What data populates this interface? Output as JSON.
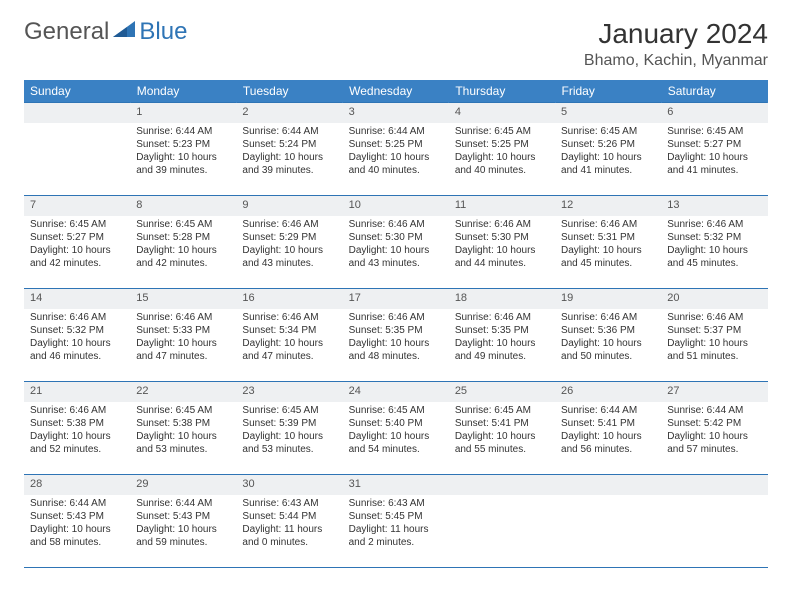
{
  "brand": {
    "word1": "General",
    "word2": "Blue",
    "tri_color": "#2e74b5",
    "text1_color": "#555555",
    "text2_color": "#2e74b5"
  },
  "title": "January 2024",
  "location": "Bhamo, Kachin, Myanmar",
  "colors": {
    "header_bg": "#3a81c4",
    "header_text": "#ffffff",
    "rule": "#2e74b5",
    "daynum_bg": "#eef0f2",
    "body_text": "#333333",
    "page_bg": "#ffffff"
  },
  "day_headers": [
    "Sunday",
    "Monday",
    "Tuesday",
    "Wednesday",
    "Thursday",
    "Friday",
    "Saturday"
  ],
  "weeks": [
    {
      "nums": [
        "",
        "1",
        "2",
        "3",
        "4",
        "5",
        "6"
      ],
      "cells": [
        [],
        [
          "Sunrise: 6:44 AM",
          "Sunset: 5:23 PM",
          "Daylight: 10 hours",
          "and 39 minutes."
        ],
        [
          "Sunrise: 6:44 AM",
          "Sunset: 5:24 PM",
          "Daylight: 10 hours",
          "and 39 minutes."
        ],
        [
          "Sunrise: 6:44 AM",
          "Sunset: 5:25 PM",
          "Daylight: 10 hours",
          "and 40 minutes."
        ],
        [
          "Sunrise: 6:45 AM",
          "Sunset: 5:25 PM",
          "Daylight: 10 hours",
          "and 40 minutes."
        ],
        [
          "Sunrise: 6:45 AM",
          "Sunset: 5:26 PM",
          "Daylight: 10 hours",
          "and 41 minutes."
        ],
        [
          "Sunrise: 6:45 AM",
          "Sunset: 5:27 PM",
          "Daylight: 10 hours",
          "and 41 minutes."
        ]
      ]
    },
    {
      "nums": [
        "7",
        "8",
        "9",
        "10",
        "11",
        "12",
        "13"
      ],
      "cells": [
        [
          "Sunrise: 6:45 AM",
          "Sunset: 5:27 PM",
          "Daylight: 10 hours",
          "and 42 minutes."
        ],
        [
          "Sunrise: 6:45 AM",
          "Sunset: 5:28 PM",
          "Daylight: 10 hours",
          "and 42 minutes."
        ],
        [
          "Sunrise: 6:46 AM",
          "Sunset: 5:29 PM",
          "Daylight: 10 hours",
          "and 43 minutes."
        ],
        [
          "Sunrise: 6:46 AM",
          "Sunset: 5:30 PM",
          "Daylight: 10 hours",
          "and 43 minutes."
        ],
        [
          "Sunrise: 6:46 AM",
          "Sunset: 5:30 PM",
          "Daylight: 10 hours",
          "and 44 minutes."
        ],
        [
          "Sunrise: 6:46 AM",
          "Sunset: 5:31 PM",
          "Daylight: 10 hours",
          "and 45 minutes."
        ],
        [
          "Sunrise: 6:46 AM",
          "Sunset: 5:32 PM",
          "Daylight: 10 hours",
          "and 45 minutes."
        ]
      ]
    },
    {
      "nums": [
        "14",
        "15",
        "16",
        "17",
        "18",
        "19",
        "20"
      ],
      "cells": [
        [
          "Sunrise: 6:46 AM",
          "Sunset: 5:32 PM",
          "Daylight: 10 hours",
          "and 46 minutes."
        ],
        [
          "Sunrise: 6:46 AM",
          "Sunset: 5:33 PM",
          "Daylight: 10 hours",
          "and 47 minutes."
        ],
        [
          "Sunrise: 6:46 AM",
          "Sunset: 5:34 PM",
          "Daylight: 10 hours",
          "and 47 minutes."
        ],
        [
          "Sunrise: 6:46 AM",
          "Sunset: 5:35 PM",
          "Daylight: 10 hours",
          "and 48 minutes."
        ],
        [
          "Sunrise: 6:46 AM",
          "Sunset: 5:35 PM",
          "Daylight: 10 hours",
          "and 49 minutes."
        ],
        [
          "Sunrise: 6:46 AM",
          "Sunset: 5:36 PM",
          "Daylight: 10 hours",
          "and 50 minutes."
        ],
        [
          "Sunrise: 6:46 AM",
          "Sunset: 5:37 PM",
          "Daylight: 10 hours",
          "and 51 minutes."
        ]
      ]
    },
    {
      "nums": [
        "21",
        "22",
        "23",
        "24",
        "25",
        "26",
        "27"
      ],
      "cells": [
        [
          "Sunrise: 6:46 AM",
          "Sunset: 5:38 PM",
          "Daylight: 10 hours",
          "and 52 minutes."
        ],
        [
          "Sunrise: 6:45 AM",
          "Sunset: 5:38 PM",
          "Daylight: 10 hours",
          "and 53 minutes."
        ],
        [
          "Sunrise: 6:45 AM",
          "Sunset: 5:39 PM",
          "Daylight: 10 hours",
          "and 53 minutes."
        ],
        [
          "Sunrise: 6:45 AM",
          "Sunset: 5:40 PM",
          "Daylight: 10 hours",
          "and 54 minutes."
        ],
        [
          "Sunrise: 6:45 AM",
          "Sunset: 5:41 PM",
          "Daylight: 10 hours",
          "and 55 minutes."
        ],
        [
          "Sunrise: 6:44 AM",
          "Sunset: 5:41 PM",
          "Daylight: 10 hours",
          "and 56 minutes."
        ],
        [
          "Sunrise: 6:44 AM",
          "Sunset: 5:42 PM",
          "Daylight: 10 hours",
          "and 57 minutes."
        ]
      ]
    },
    {
      "nums": [
        "28",
        "29",
        "30",
        "31",
        "",
        "",
        ""
      ],
      "cells": [
        [
          "Sunrise: 6:44 AM",
          "Sunset: 5:43 PM",
          "Daylight: 10 hours",
          "and 58 minutes."
        ],
        [
          "Sunrise: 6:44 AM",
          "Sunset: 5:43 PM",
          "Daylight: 10 hours",
          "and 59 minutes."
        ],
        [
          "Sunrise: 6:43 AM",
          "Sunset: 5:44 PM",
          "Daylight: 11 hours",
          "and 0 minutes."
        ],
        [
          "Sunrise: 6:43 AM",
          "Sunset: 5:45 PM",
          "Daylight: 11 hours",
          "and 2 minutes."
        ],
        [],
        [],
        []
      ]
    }
  ]
}
